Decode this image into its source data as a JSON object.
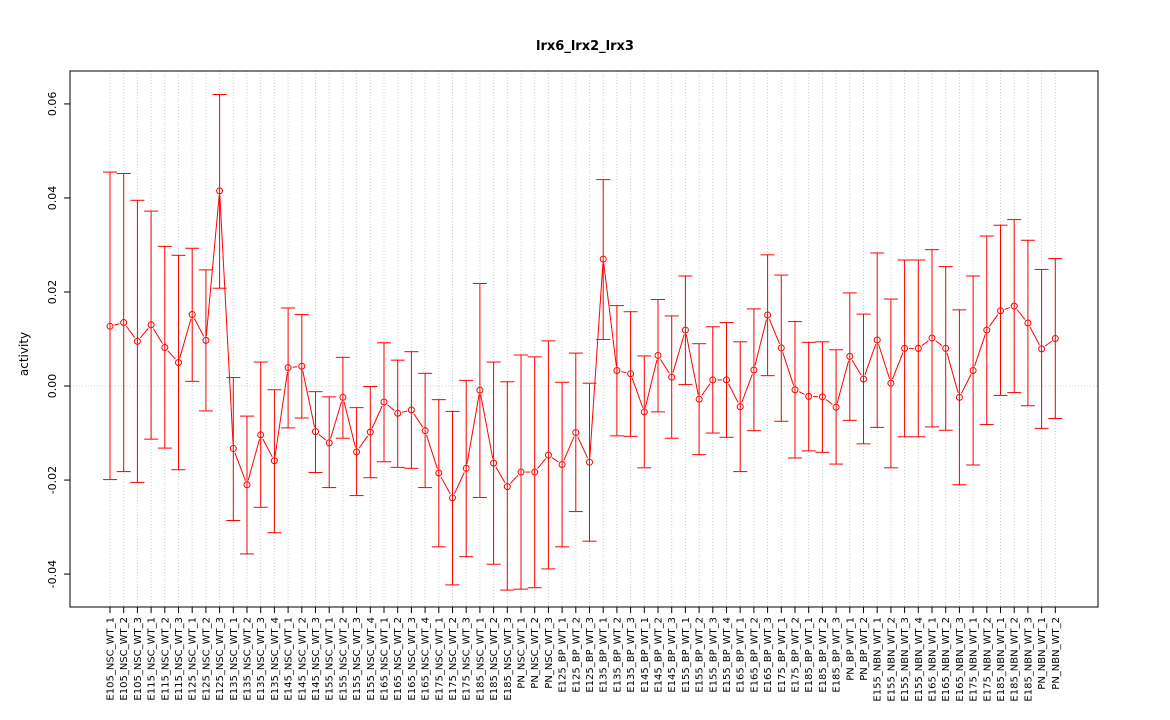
{
  "chart_data": {
    "type": "line",
    "title": "lrx6_lrx2_lrx3",
    "xlabel": "",
    "ylabel": "activity",
    "ylim": [
      -0.047,
      0.067
    ],
    "yticks": [
      -0.04,
      -0.02,
      0.0,
      0.02,
      0.04,
      0.06
    ],
    "ytick_labels": [
      "-0.04",
      "-0.02",
      "0.00",
      "0.02",
      "0.04",
      "0.06"
    ],
    "grid": true,
    "reference_line": 0,
    "colors": {
      "series": "#ff0000",
      "grid": "#cccccc",
      "axis": "#000000"
    },
    "categories": [
      "E105_NSC_WT_1",
      "E105_NSC_WT_2",
      "E105_NSC_WT_3",
      "E115_NSC_WT_1",
      "E115_NSC_WT_2",
      "E115_NSC_WT_3",
      "E125_NSC_WT_1",
      "E125_NSC_WT_2",
      "E125_NSC_WT_3",
      "E135_NSC_WT_1",
      "E135_NSC_WT_2",
      "E135_NSC_WT_3",
      "E135_NSC_WT_4",
      "E145_NSC_WT_1",
      "E145_NSC_WT_2",
      "E145_NSC_WT_3",
      "E155_NSC_WT_1",
      "E155_NSC_WT_2",
      "E155_NSC_WT_3",
      "E155_NSC_WT_4",
      "E165_NSC_WT_1",
      "E165_NSC_WT_2",
      "E165_NSC_WT_3",
      "E165_NSC_WT_4",
      "E175_NSC_WT_1",
      "E175_NSC_WT_2",
      "E175_NSC_WT_3",
      "E185_NSC_WT_1",
      "E185_NSC_WT_2",
      "E185_NSC_WT_3",
      "PN_NSC_WT_1",
      "PN_NSC_WT_2",
      "PN_NSC_WT_3",
      "E125_BP_WT_1",
      "E125_BP_WT_2",
      "E125_BP_WT_3",
      "E135_BP_WT_1",
      "E135_BP_WT_2",
      "E135_BP_WT_3",
      "E145_BP_WT_1",
      "E145_BP_WT_2",
      "E145_BP_WT_3",
      "E155_BP_WT_1",
      "E155_BP_WT_2",
      "E155_BP_WT_3",
      "E155_BP_WT_4",
      "E165_BP_WT_1",
      "E165_BP_WT_2",
      "E165_BP_WT_3",
      "E175_BP_WT_1",
      "E175_BP_WT_2",
      "E185_BP_WT_1",
      "E185_BP_WT_2",
      "E185_BP_WT_3",
      "PN_BP_WT_1",
      "PN_BP_WT_2",
      "E155_NBN_WT_1",
      "E155_NBN_WT_2",
      "E155_NBN_WT_3",
      "E155_NBN_WT_4",
      "E165_NBN_WT_1",
      "E165_NBN_WT_2",
      "E165_NBN_WT_3",
      "E175_NBN_WT_1",
      "E175_NBN_WT_2",
      "E185_NBN_WT_1",
      "E185_NBN_WT_2",
      "E185_NBN_WT_3",
      "PN_NBN_WT_1",
      "PN_NBN_WT_2"
    ],
    "series": [
      {
        "values": [
          0.0127,
          0.0135,
          0.0095,
          0.013,
          0.0082,
          0.005,
          0.0152,
          0.0097,
          0.0415,
          -0.0133,
          -0.021,
          -0.0104,
          -0.0159,
          0.0039,
          0.0042,
          -0.0097,
          -0.0121,
          -0.0024,
          -0.014,
          -0.0098,
          -0.0034,
          -0.0058,
          -0.0051,
          -0.0095,
          -0.0185,
          -0.0238,
          -0.0175,
          -0.0009,
          -0.0164,
          -0.0214,
          -0.0183,
          -0.0183,
          -0.0147,
          -0.0167,
          -0.0099,
          -0.0162,
          0.027,
          0.0033,
          0.0026,
          -0.0055,
          0.0065,
          0.0019,
          0.0119,
          -0.0028,
          0.0013,
          0.0013,
          -0.0044,
          0.0034,
          0.0151,
          0.0081,
          -0.0008,
          -0.0022,
          -0.0023,
          -0.0045,
          0.0063,
          0.0015,
          0.0098,
          0.0006,
          0.008,
          0.008,
          0.0102,
          0.008,
          -0.0024,
          0.0033,
          0.0119,
          0.016,
          0.017,
          0.0134,
          0.0079,
          0.0101
        ],
        "upper": [
          0.0455,
          0.0452,
          0.0395,
          0.0372,
          0.0297,
          0.0278,
          0.0293,
          0.0247,
          0.062,
          0.0018,
          -0.0064,
          0.0051,
          -0.0008,
          0.0166,
          0.0152,
          -0.0012,
          -0.0023,
          0.0061,
          -0.0046,
          -0.0001,
          0.0092,
          0.0055,
          0.0073,
          0.0027,
          -0.0029,
          -0.0054,
          0.0012,
          0.0218,
          0.0051,
          0.0009,
          0.0066,
          0.0062,
          0.0096,
          0.0008,
          0.007,
          0.0006,
          0.0439,
          0.0171,
          0.0158,
          0.0064,
          0.0184,
          0.0149,
          0.0234,
          0.009,
          0.0126,
          0.0135,
          0.0094,
          0.0164,
          0.0279,
          0.0236,
          0.0137,
          0.0093,
          0.0094,
          0.0077,
          0.0198,
          0.0153,
          0.0283,
          0.0185,
          0.0268,
          0.0268,
          0.029,
          0.0254,
          0.0162,
          0.0234,
          0.0319,
          0.0342,
          0.0354,
          0.031,
          0.0248,
          0.0271
        ],
        "lower": [
          -0.0199,
          -0.0182,
          -0.0205,
          -0.0113,
          -0.0132,
          -0.0178,
          0.001,
          -0.0053,
          0.0208,
          -0.0286,
          -0.0357,
          -0.0258,
          -0.0312,
          -0.0089,
          -0.0068,
          -0.0184,
          -0.0216,
          -0.0111,
          -0.0233,
          -0.0195,
          -0.0161,
          -0.0173,
          -0.0175,
          -0.0216,
          -0.0342,
          -0.0423,
          -0.0363,
          -0.0237,
          -0.0379,
          -0.0434,
          -0.0432,
          -0.0429,
          -0.0389,
          -0.0342,
          -0.0267,
          -0.033,
          0.0099,
          -0.0106,
          -0.0107,
          -0.0174,
          -0.0055,
          -0.0111,
          0.0003,
          -0.0146,
          -0.01,
          -0.0109,
          -0.0182,
          -0.0095,
          0.0022,
          -0.0075,
          -0.0153,
          -0.0138,
          -0.0141,
          -0.0166,
          -0.0073,
          -0.0123,
          -0.0088,
          -0.0174,
          -0.0108,
          -0.0108,
          -0.0087,
          -0.0094,
          -0.021,
          -0.0168,
          -0.0082,
          -0.002,
          -0.0014,
          -0.0042,
          -0.009,
          -0.0069
        ]
      }
    ]
  }
}
